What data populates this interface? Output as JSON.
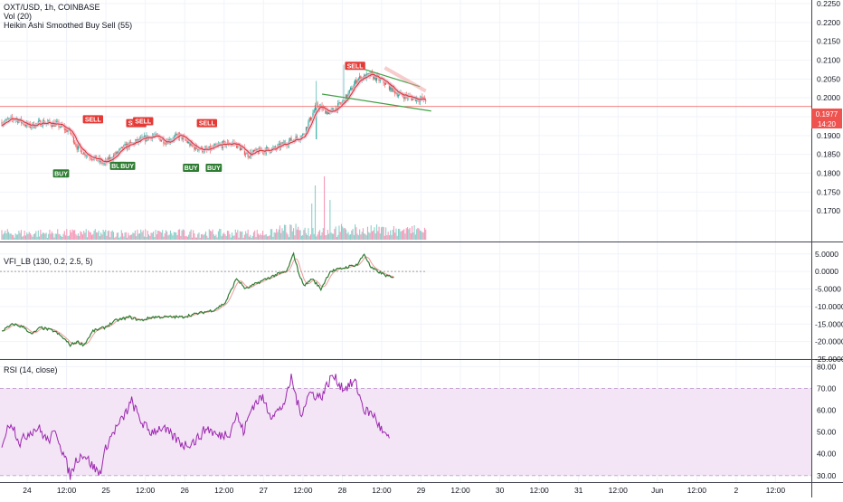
{
  "header": {
    "symbol_line": "OXT/USD, 1h, COINBASE",
    "vol_line": "Vol (20)",
    "indicator_line": "Heikin Ashi Smoothed Buy Sell (55)"
  },
  "colors": {
    "up": "#26a69a",
    "down": "#ef5350",
    "buy_badge": "#2e7d32",
    "sell_badge": "#e53935",
    "ma": "#d32f2f",
    "vfi": "#2e7d32",
    "vfi_signal": "#ef9a9a",
    "rsi_line": "#9c27b0",
    "rsi_band": "#f3e5f5",
    "trendline": "#43a047",
    "price_line": "#ef5350"
  },
  "x_axis": {
    "labels": [
      "24",
      "12:00",
      "25",
      "12:00",
      "26",
      "12:00",
      "27",
      "12:00",
      "28",
      "12:00",
      "29",
      "12:00",
      "30",
      "12:00",
      "31",
      "12:00",
      "Jun",
      "12:00",
      "2",
      "12:00"
    ]
  },
  "chart_data": [
    {
      "type": "candlestick",
      "title": "OXT/USD, 1h, COINBASE",
      "ylim": [
        0.165,
        0.225
      ],
      "yticks": [
        "0.2250",
        "0.2200",
        "0.2150",
        "0.2100",
        "0.2050",
        "0.2000",
        "0.1950",
        "0.1900",
        "0.1850",
        "0.1800",
        "0.1750",
        "0.1700"
      ],
      "ytick_values": [
        0.225,
        0.22,
        0.215,
        0.21,
        0.205,
        0.2,
        0.195,
        0.19,
        0.185,
        0.18,
        0.175,
        0.17
      ],
      "last_price": "0.1977",
      "countdown": "14:20",
      "close_anchors": [
        [
          0,
          0.1935
        ],
        [
          12,
          0.1945
        ],
        [
          24,
          0.1925
        ],
        [
          36,
          0.1935
        ],
        [
          48,
          0.193
        ],
        [
          60,
          0.191
        ],
        [
          66,
          0.187
        ],
        [
          72,
          0.1855
        ],
        [
          84,
          0.1835
        ],
        [
          90,
          0.1825
        ],
        [
          96,
          0.184
        ],
        [
          108,
          0.187
        ],
        [
          120,
          0.1885
        ],
        [
          132,
          0.19
        ],
        [
          144,
          0.1885
        ],
        [
          156,
          0.19
        ],
        [
          168,
          0.187
        ],
        [
          180,
          0.186
        ],
        [
          192,
          0.1875
        ],
        [
          204,
          0.188
        ],
        [
          216,
          0.185
        ],
        [
          228,
          0.186
        ],
        [
          240,
          0.1865
        ],
        [
          252,
          0.1885
        ],
        [
          264,
          0.19
        ],
        [
          276,
          0.198
        ],
        [
          288,
          0.196
        ],
        [
          300,
          0.199
        ],
        [
          312,
          0.205
        ],
        [
          324,
          0.206
        ],
        [
          336,
          0.204
        ],
        [
          348,
          0.201
        ],
        [
          360,
          0.2
        ],
        [
          372,
          0.1995
        ]
      ],
      "signals": [
        {
          "label": "SELL",
          "type": "sell",
          "x": 80,
          "price": 0.1925
        },
        {
          "label": "SELL",
          "type": "sell",
          "x": 118,
          "price": 0.1915
        },
        {
          "label": "SELL",
          "type": "sell",
          "x": 124,
          "price": 0.192
        },
        {
          "label": "SELL",
          "type": "sell",
          "x": 180,
          "price": 0.1915
        },
        {
          "label": "SELL",
          "type": "sell",
          "x": 310,
          "price": 0.2067
        },
        {
          "label": "BUY",
          "type": "buy",
          "x": 52,
          "price": 0.1815
        },
        {
          "label": "BUY",
          "type": "buy",
          "x": 102,
          "price": 0.1835
        },
        {
          "label": "BUY",
          "type": "buy",
          "x": 110,
          "price": 0.1835
        },
        {
          "label": "BUY",
          "type": "buy",
          "x": 166,
          "price": 0.183
        },
        {
          "label": "BUY",
          "type": "buy",
          "x": 186,
          "price": 0.183
        }
      ],
      "trendlines": [
        {
          "x1": 303,
          "p1": 0.209,
          "x2": 335,
          "p2": 0.203
        },
        {
          "x1": 281,
          "p1": 0.201,
          "x2": 345,
          "p2": 0.1965
        }
      ],
      "volume_spikes": [
        [
          275,
          6.0
        ],
        [
          283,
          7.0
        ],
        [
          288,
          4.4
        ],
        [
          272,
          4.0
        ]
      ]
    },
    {
      "type": "line",
      "title": "VFI_LB (130, 0.2, 2.5, 5)",
      "ylim": [
        -25,
        7
      ],
      "yticks": [
        "5.0000",
        "0.0000",
        "-5.0000",
        "-10.0000",
        "-15.0000",
        "-20.0000",
        "-25.0000"
      ],
      "ytick_values": [
        5,
        0,
        -5,
        -10,
        -15,
        -20,
        -25
      ],
      "anchors": [
        [
          0,
          -17
        ],
        [
          10,
          -15
        ],
        [
          20,
          -16
        ],
        [
          26,
          -18
        ],
        [
          34,
          -16
        ],
        [
          46,
          -17
        ],
        [
          54,
          -19
        ],
        [
          60,
          -21
        ],
        [
          66,
          -20
        ],
        [
          72,
          -21
        ],
        [
          80,
          -17
        ],
        [
          90,
          -16
        ],
        [
          100,
          -14
        ],
        [
          112,
          -13
        ],
        [
          122,
          -14
        ],
        [
          132,
          -13
        ],
        [
          146,
          -13
        ],
        [
          158,
          -13
        ],
        [
          172,
          -12
        ],
        [
          186,
          -11
        ],
        [
          196,
          -9
        ],
        [
          206,
          -2
        ],
        [
          214,
          -5
        ],
        [
          226,
          -3
        ],
        [
          240,
          -1
        ],
        [
          250,
          0
        ],
        [
          256,
          5
        ],
        [
          262,
          -2
        ],
        [
          266,
          -4
        ],
        [
          272,
          -2
        ],
        [
          280,
          -5
        ],
        [
          288,
          0
        ],
        [
          300,
          1
        ],
        [
          312,
          2
        ],
        [
          318,
          5
        ],
        [
          324,
          1
        ],
        [
          330,
          0
        ],
        [
          336,
          -1
        ],
        [
          344,
          -2
        ]
      ]
    },
    {
      "type": "line",
      "title": "RSI (14, close)",
      "ylim": [
        27,
        81
      ],
      "yticks": [
        "80.00",
        "70.00",
        "60.00",
        "50.00",
        "40.00",
        "30.00"
      ],
      "ytick_values": [
        80,
        70,
        60,
        50,
        40,
        30
      ],
      "band": [
        30,
        70
      ],
      "anchors": [
        [
          0,
          45
        ],
        [
          8,
          55
        ],
        [
          16,
          45
        ],
        [
          24,
          50
        ],
        [
          32,
          52
        ],
        [
          40,
          46
        ],
        [
          48,
          50
        ],
        [
          54,
          40
        ],
        [
          60,
          30
        ],
        [
          66,
          38
        ],
        [
          72,
          40
        ],
        [
          80,
          34
        ],
        [
          86,
          31
        ],
        [
          92,
          44
        ],
        [
          98,
          50
        ],
        [
          106,
          56
        ],
        [
          114,
          64
        ],
        [
          122,
          55
        ],
        [
          130,
          50
        ],
        [
          140,
          52
        ],
        [
          150,
          48
        ],
        [
          160,
          44
        ],
        [
          170,
          46
        ],
        [
          180,
          52
        ],
        [
          190,
          48
        ],
        [
          200,
          50
        ],
        [
          206,
          58
        ],
        [
          212,
          50
        ],
        [
          220,
          62
        ],
        [
          228,
          66
        ],
        [
          236,
          58
        ],
        [
          244,
          60
        ],
        [
          250,
          66
        ],
        [
          254,
          75
        ],
        [
          262,
          58
        ],
        [
          270,
          68
        ],
        [
          280,
          66
        ],
        [
          290,
          76
        ],
        [
          300,
          70
        ],
        [
          310,
          73
        ],
        [
          318,
          60
        ],
        [
          326,
          58
        ],
        [
          334,
          50
        ],
        [
          340,
          46
        ]
      ]
    }
  ]
}
